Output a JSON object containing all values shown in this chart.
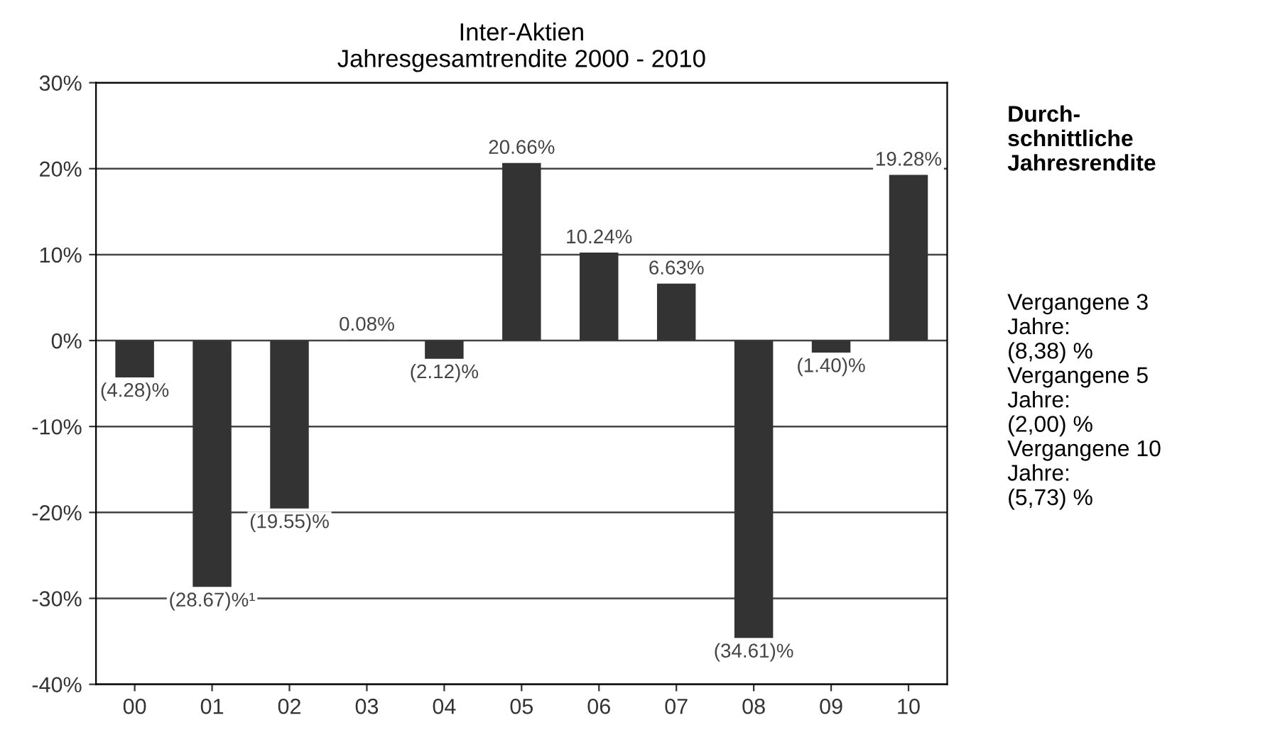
{
  "chart_data": {
    "type": "bar",
    "title": "Inter-Aktien\nJahresgesamtrendite 2000 - 2010",
    "categories": [
      "00",
      "01",
      "02",
      "03",
      "04",
      "05",
      "06",
      "07",
      "08",
      "09",
      "10"
    ],
    "values": [
      -4.28,
      -28.67,
      -19.55,
      0.08,
      -2.12,
      20.66,
      10.24,
      6.63,
      -34.61,
      -1.4,
      19.28
    ],
    "value_labels": [
      "(4.28)%",
      "(28.67)%¹",
      "(19.55)%",
      "0.08%",
      "(2.12)%",
      "20.66%",
      "10.24%",
      "6.63%",
      "(34.61)%",
      "(1.40)%",
      "19.28%"
    ],
    "color": "#333333",
    "ylim": [
      -40,
      30
    ],
    "yticks": [
      {
        "value": -40,
        "label": "-40%"
      },
      {
        "value": -30,
        "label": "-30%"
      },
      {
        "value": -20,
        "label": "-20%"
      },
      {
        "value": -10,
        "label": "-10%"
      },
      {
        "value": 0,
        "label": "0%"
      },
      {
        "value": 10,
        "label": "10%"
      },
      {
        "value": 20,
        "label": "20%"
      },
      {
        "value": 30,
        "label": "30%"
      }
    ],
    "grid": "y",
    "annotations": [
      "Durch-\nschnittliche\nJahresrendite",
      "Vergangene 3\nJahre:\n(8,38) %\nVergangene 5\nJahre:\n(2,00) %\nVergangene 10\nJahre:\n(5,73) %"
    ]
  }
}
